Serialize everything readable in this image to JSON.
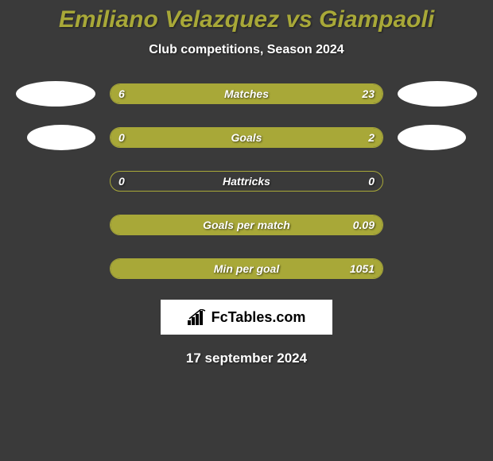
{
  "title": "Emiliano Velazquez vs Giampaoli",
  "subtitle": "Club competitions, Season 2024",
  "date": "17 september 2024",
  "logo_text": "FcTables.com",
  "colors": {
    "background": "#3a3a3a",
    "accent": "#a8a838",
    "text": "#ffffff",
    "logo_bg": "#ffffff",
    "logo_text": "#000000"
  },
  "stats": [
    {
      "label": "Matches",
      "left_value": "6",
      "right_value": "23",
      "left_pct": 20,
      "right_pct": 80,
      "show_ellipses": true
    },
    {
      "label": "Goals",
      "left_value": "0",
      "right_value": "2",
      "left_pct": 0,
      "right_pct": 100,
      "show_ellipses": true,
      "ellipse_narrow": true
    },
    {
      "label": "Hattricks",
      "left_value": "0",
      "right_value": "0",
      "left_pct": 0,
      "right_pct": 0,
      "show_ellipses": false
    },
    {
      "label": "Goals per match",
      "left_value": "",
      "right_value": "0.09",
      "left_pct": 0,
      "right_pct": 100,
      "show_ellipses": false
    },
    {
      "label": "Min per goal",
      "left_value": "",
      "right_value": "1051",
      "left_pct": 0,
      "right_pct": 100,
      "show_ellipses": false
    }
  ]
}
